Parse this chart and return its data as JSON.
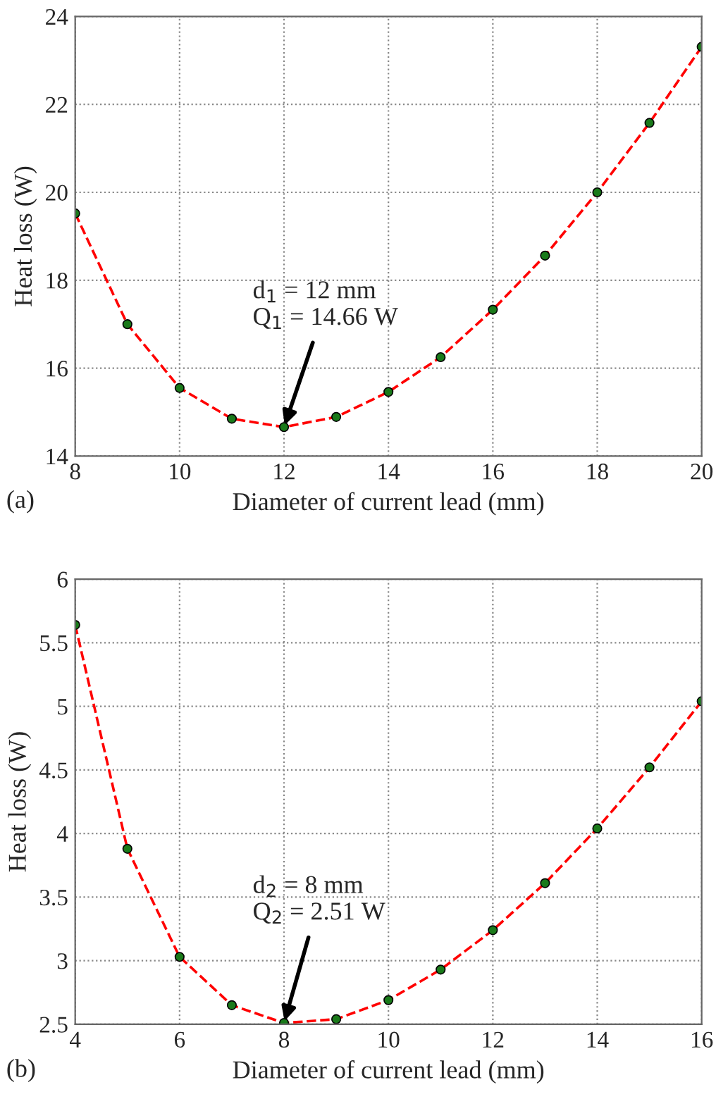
{
  "chart_data": [
    {
      "type": "line",
      "xlabel": "Diameter of current lead (mm)",
      "ylabel": "Heat loss (W)",
      "x": [
        8,
        9,
        10,
        11,
        12,
        13,
        14,
        15,
        16,
        17,
        18,
        19,
        20
      ],
      "series": [
        {
          "color": "#ff0000",
          "values": [
            19.52,
            17.0,
            15.55,
            14.85,
            14.66,
            14.89,
            15.46,
            16.25,
            17.33,
            18.56,
            20.0,
            21.58,
            23.31
          ]
        }
      ],
      "xlim": [
        8,
        20
      ],
      "xticks": [
        8,
        10,
        12,
        14,
        16,
        18,
        20
      ],
      "ylim": [
        14,
        24
      ],
      "yticks": [
        14,
        16,
        18,
        20,
        22,
        24
      ],
      "grid": true,
      "marker": "circle",
      "line_style": "dashed",
      "annotations": [
        {
          "text": "d$_{1}$ = 12 mm\nQ$_{1}$ = 14.66 W",
          "x": 12,
          "y": 14.66
        },
        "(a)"
      ]
    },
    {
      "type": "line",
      "xlabel": "Diameter of current lead (mm)",
      "ylabel": "Heat loss (W)",
      "x": [
        4,
        5,
        6,
        7,
        8,
        9,
        10,
        11,
        12,
        13,
        14,
        15,
        16
      ],
      "series": [
        {
          "color": "#ff0000",
          "values": [
            5.64,
            3.88,
            3.03,
            2.65,
            2.51,
            2.54,
            2.69,
            2.93,
            3.24,
            3.61,
            4.04,
            4.52,
            5.04
          ]
        }
      ],
      "xlim": [
        4,
        16
      ],
      "xticks": [
        4,
        6,
        8,
        10,
        12,
        14,
        16
      ],
      "ylim": [
        2.5,
        6
      ],
      "yticks": [
        2.5,
        3,
        3.5,
        4,
        4.5,
        5,
        5.5,
        6
      ],
      "grid": true,
      "marker": "circle",
      "line_style": "dashed",
      "annotations": [
        {
          "text": "d$_{2}$ = 8 mm\nQ$_{2}$ = 2.51 W",
          "x": 8,
          "y": 2.51
        },
        "(b)"
      ]
    }
  ]
}
